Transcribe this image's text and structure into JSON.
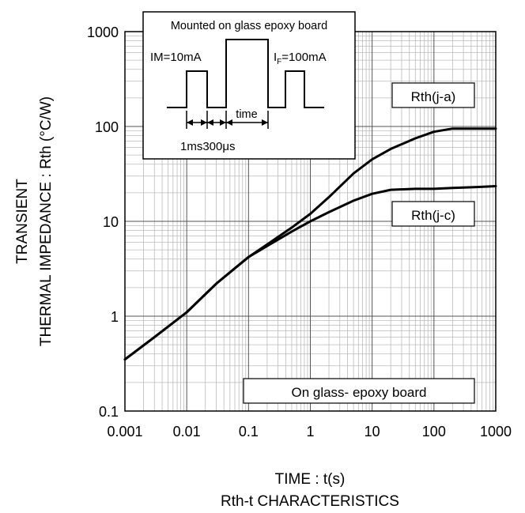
{
  "chart_data": {
    "type": "line",
    "x_scale": "log",
    "y_scale": "log",
    "xlim": [
      0.001,
      1000
    ],
    "ylim": [
      0.1,
      1000
    ],
    "grid": true,
    "x_ticks": [
      "0.001",
      "0.01",
      "0.1",
      "1",
      "10",
      "100",
      "1000"
    ],
    "y_ticks": [
      "0.1",
      "1",
      "10",
      "100",
      "1000"
    ],
    "xlabel": "TIME : t(s)",
    "ylabel_line1": "TRANSIENT",
    "ylabel_line2": "THERMAL IMPEDANCE : Rth (°C/W)",
    "caption": "Rth-t CHARACTERISTICS",
    "series": [
      {
        "name": "Rth(j-a)",
        "x": [
          0.001,
          0.003,
          0.01,
          0.03,
          0.1,
          0.2,
          0.5,
          1,
          2,
          5,
          10,
          20,
          50,
          100,
          200,
          500,
          1000
        ],
        "y": [
          0.35,
          0.6,
          1.1,
          2.2,
          4.2,
          5.7,
          8.6,
          12,
          18,
          32,
          45,
          58,
          75,
          88,
          95,
          95,
          95
        ]
      },
      {
        "name": "Rth(j-c)",
        "x": [
          0.001,
          0.003,
          0.01,
          0.03,
          0.1,
          0.2,
          0.5,
          1,
          2,
          5,
          10,
          20,
          50,
          100,
          200,
          500,
          1000
        ],
        "y": [
          0.35,
          0.6,
          1.1,
          2.2,
          4.2,
          5.5,
          7.8,
          10,
          12.5,
          16.5,
          19.5,
          21.5,
          22,
          22,
          22.5,
          23,
          23.5
        ]
      }
    ],
    "annotations": {
      "rth_ja_label": "Rth(j-a)",
      "rth_jc_label": "Rth(j-c)",
      "board_label": "On glass- epoxy board"
    },
    "inset": {
      "title": "Mounted on glass epoxy board",
      "im_label": "IM=10mA",
      "if_label_main": "I",
      "if_label_sub": "F",
      "if_label_rest": "=100mA",
      "time_label": "time",
      "width1_label": "1ms",
      "width2_label": "300μs"
    }
  }
}
